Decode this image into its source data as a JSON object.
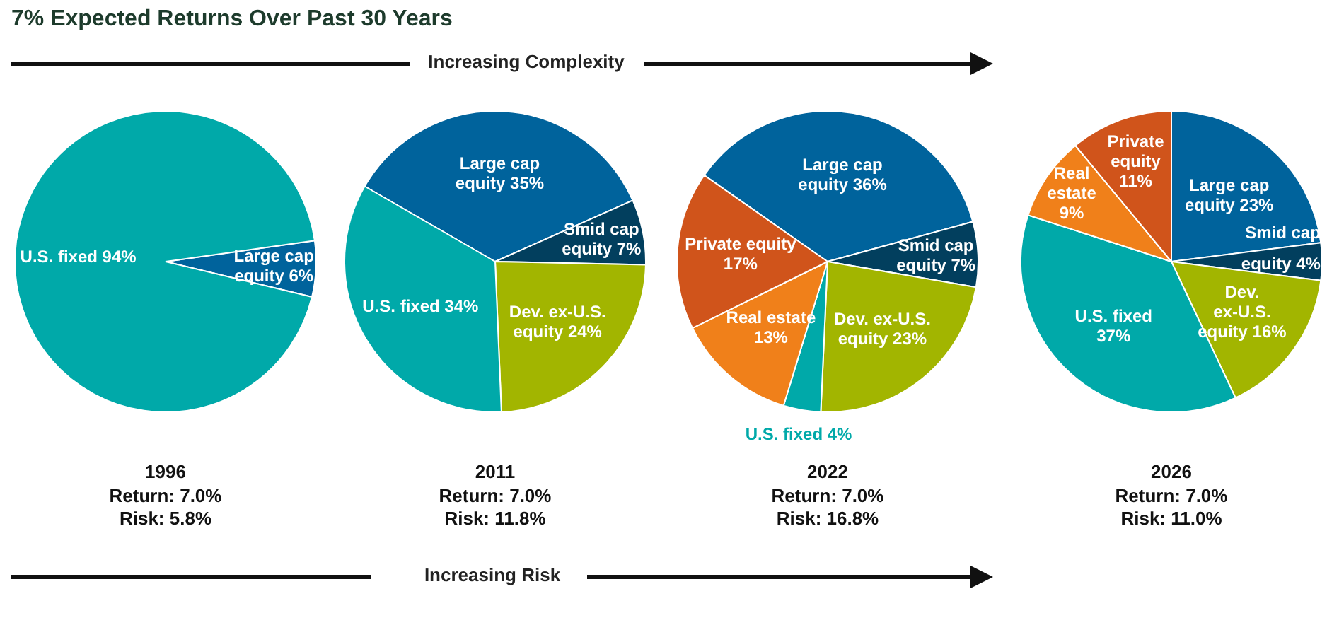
{
  "chart_data": [
    {
      "type": "other",
      "title": "7% Expected Returns Over Past 30 Years",
      "annotations": [
        "Increasing Complexity",
        "Increasing Risk"
      ]
    },
    {
      "type": "pie",
      "title": "1996",
      "categories": [
        "Large cap equity",
        "U.S. fixed"
      ],
      "values": [
        6,
        94
      ],
      "colors": [
        "#00639c",
        "#00a9a9"
      ],
      "value_labels": [
        "6%",
        "94%"
      ],
      "annotations": [
        "Return: 7.0%",
        "Risk: 5.8%"
      ]
    },
    {
      "type": "pie",
      "title": "2011",
      "categories": [
        "Large cap equity",
        "Smid cap equity",
        "Dev. ex-U.S. equity",
        "U.S. fixed"
      ],
      "values": [
        35,
        7,
        24,
        34
      ],
      "colors": [
        "#00639c",
        "#023f5e",
        "#a2b500",
        "#00a9a9"
      ],
      "value_labels": [
        "35%",
        "7%",
        "24%",
        "34%"
      ],
      "annotations": [
        "Return: 7.0%",
        "Risk: 11.8%"
      ]
    },
    {
      "type": "pie",
      "title": "2022",
      "categories": [
        "Large cap equity",
        "Smid cap equity",
        "Dev. ex-U.S. equity",
        "U.S. fixed",
        "Real estate",
        "Private equity"
      ],
      "values": [
        36,
        7,
        23,
        4,
        13,
        17
      ],
      "colors": [
        "#00639c",
        "#023f5e",
        "#a2b500",
        "#00a9a9",
        "#f0801a",
        "#d0541b"
      ],
      "value_labels": [
        "36%",
        "7%",
        "23%",
        "4%",
        "13%",
        "17%"
      ],
      "annotations": [
        "Return: 7.0%",
        "Risk: 16.8%"
      ]
    },
    {
      "type": "pie",
      "title": "2026",
      "categories": [
        "Large cap equity",
        "Smid cap equity",
        "Dev. ex-U.S. equity",
        "U.S. fixed",
        "Real estate",
        "Private equity"
      ],
      "values": [
        23,
        4,
        16,
        37,
        9,
        11
      ],
      "colors": [
        "#00639c",
        "#023f5e",
        "#a2b500",
        "#00a9a9",
        "#f0801a",
        "#d0541b"
      ],
      "value_labels": [
        "23%",
        "4%",
        "16%",
        "37%",
        "9%",
        "11%"
      ],
      "annotations": [
        "Return: 7.0%",
        "Risk: 11.0%"
      ]
    }
  ]
}
